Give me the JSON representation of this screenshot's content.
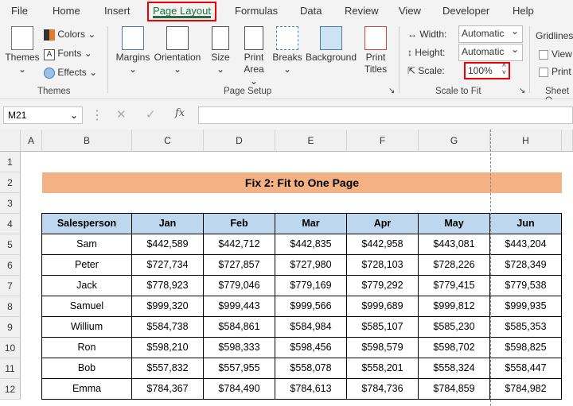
{
  "tabs": [
    "File",
    "Home",
    "Insert",
    "Page Layout",
    "Formulas",
    "Data",
    "Review",
    "View",
    "Developer",
    "Help"
  ],
  "ribbon": {
    "themes": {
      "themes": "Themes",
      "colors": "Colors",
      "fonts": "Fonts",
      "effects": "Effects",
      "group": "Themes"
    },
    "page_setup": {
      "margins": "Margins",
      "orientation": "Orientation",
      "size": "Size",
      "print_area": "Print Area",
      "breaks": "Breaks",
      "background": "Background",
      "print_titles": "Print Titles",
      "group": "Page Setup"
    },
    "scale_to_fit": {
      "width_label": "Width:",
      "width_value": "Automatic",
      "height_label": "Height:",
      "height_value": "Automatic",
      "scale_label": "Scale:",
      "scale_value": "100%",
      "group": "Scale to Fit"
    },
    "sheet_options": {
      "gridlines": "Gridlines",
      "view": "View",
      "print": "Print",
      "group": "Sheet O"
    }
  },
  "formula_bar": {
    "name_box": "M21",
    "formula": ""
  },
  "columns": [
    "A",
    "B",
    "C",
    "D",
    "E",
    "F",
    "G",
    "H"
  ],
  "rows": [
    "1",
    "2",
    "3",
    "4",
    "5",
    "6",
    "7",
    "8",
    "9",
    "10",
    "11",
    "12"
  ],
  "sheet": {
    "title": "Fix 2: Fit to One Page",
    "headers": [
      "Salesperson",
      "Jan",
      "Feb",
      "Mar",
      "Apr",
      "May",
      "Jun"
    ],
    "data": [
      [
        "Sam",
        "$442,589",
        "$442,712",
        "$442,835",
        "$442,958",
        "$443,081",
        "$443,204"
      ],
      [
        "Peter",
        "$727,734",
        "$727,857",
        "$727,980",
        "$728,103",
        "$728,226",
        "$728,349"
      ],
      [
        "Jack",
        "$778,923",
        "$779,046",
        "$779,169",
        "$779,292",
        "$779,415",
        "$779,538"
      ],
      [
        "Samuel",
        "$999,320",
        "$999,443",
        "$999,566",
        "$999,689",
        "$999,812",
        "$999,935"
      ],
      [
        "Willium",
        "$584,738",
        "$584,861",
        "$584,984",
        "$585,107",
        "$585,230",
        "$585,353"
      ],
      [
        "Ron",
        "$598,210",
        "$598,333",
        "$598,456",
        "$598,579",
        "$598,702",
        "$598,825"
      ],
      [
        "Bob",
        "$557,832",
        "$557,955",
        "$558,078",
        "$558,201",
        "$558,324",
        "$558,447"
      ],
      [
        "Emma",
        "$784,367",
        "$784,490",
        "$784,613",
        "$784,736",
        "$784,859",
        "$784,982"
      ]
    ]
  },
  "colors": {
    "highlight": "#e00000",
    "title_fill": "#f4b183",
    "header_fill": "#bdd7ee"
  }
}
